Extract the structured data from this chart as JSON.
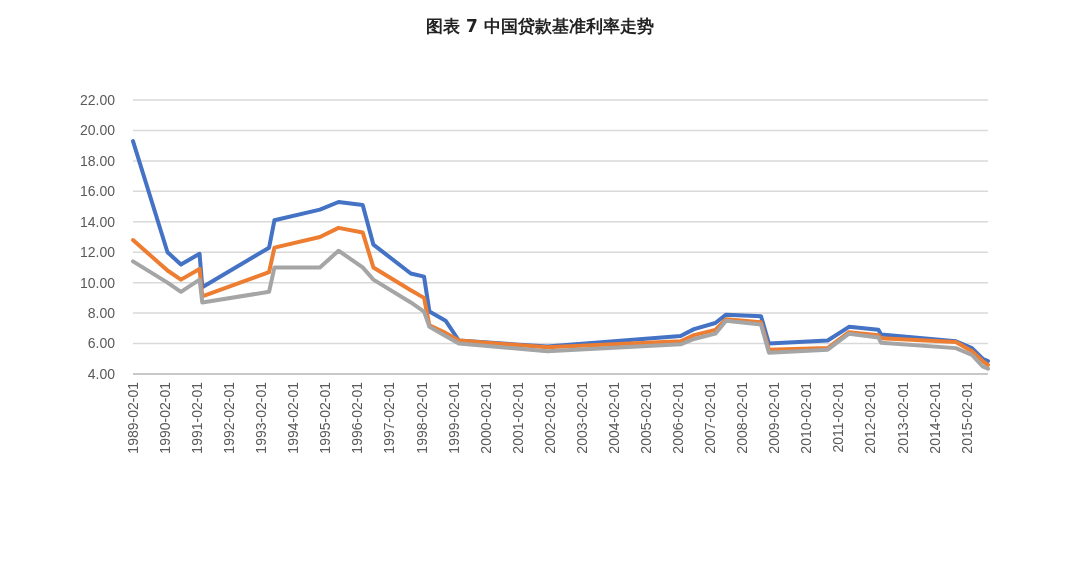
{
  "chart_data": {
    "type": "line",
    "title": "图表 7 中国贷款基准利率走势",
    "x": [
      "1989-02",
      "1990-03",
      "1990-08",
      "1991-03",
      "1991-04",
      "1993-05",
      "1993-07",
      "1994-12",
      "1995-07",
      "1996-04",
      "1996-08",
      "1997-10",
      "1998-03",
      "1998-05",
      "1998-11",
      "1999-04",
      "2002-01",
      "2006-03",
      "2006-08",
      "2007-04",
      "2007-08",
      "2008-09",
      "2008-12",
      "2010-10",
      "2011-06",
      "2012-05",
      "2012-06",
      "2014-10",
      "2015-04",
      "2015-08",
      "2015-10"
    ],
    "series": [
      {
        "color": "#4472c4",
        "values": [
          19.3,
          12.0,
          11.2,
          11.9,
          9.7,
          12.3,
          14.1,
          14.8,
          15.3,
          15.1,
          12.5,
          10.6,
          10.4,
          8.1,
          7.5,
          6.2,
          5.8,
          6.5,
          6.95,
          7.35,
          7.9,
          7.8,
          6.0,
          6.2,
          7.1,
          6.9,
          6.6,
          6.15,
          5.7,
          5.0,
          4.85
        ]
      },
      {
        "color": "#ed7d31",
        "values": [
          12.8,
          10.8,
          10.2,
          10.9,
          9.1,
          10.7,
          12.3,
          13.0,
          13.6,
          13.3,
          11.0,
          9.5,
          9.0,
          7.2,
          6.7,
          6.2,
          5.75,
          6.15,
          6.55,
          6.9,
          7.6,
          7.4,
          5.6,
          5.7,
          6.75,
          6.55,
          6.35,
          6.1,
          5.5,
          4.85,
          4.6
        ]
      },
      {
        "color": "#a5a5a5",
        "values": [
          11.4,
          10.0,
          9.4,
          10.2,
          8.7,
          9.4,
          11.0,
          11.0,
          12.1,
          11.0,
          10.2,
          8.7,
          8.1,
          7.1,
          6.5,
          6.0,
          5.5,
          5.95,
          6.3,
          6.65,
          7.5,
          7.25,
          5.4,
          5.6,
          6.65,
          6.4,
          6.05,
          5.7,
          5.25,
          4.5,
          4.35
        ]
      }
    ],
    "xlim": [
      "1989-02",
      "2015-10"
    ],
    "xticks": [
      "1989-02-01",
      "1990-02-01",
      "1991-02-01",
      "1992-02-01",
      "1993-02-01",
      "1994-02-01",
      "1995-02-01",
      "1996-02-01",
      "1997-02-01",
      "1998-02-01",
      "1999-02-01",
      "2000-02-01",
      "2001-02-01",
      "2002-02-01",
      "2003-02-01",
      "2004-02-01",
      "2005-02-01",
      "2006-02-01",
      "2007-02-01",
      "2008-02-01",
      "2009-02-01",
      "2010-02-01",
      "2011-02-01",
      "2012-02-01",
      "2013-02-01",
      "2014-02-01",
      "2015-02-01"
    ],
    "ylim": [
      4,
      22
    ],
    "yticks": [
      {
        "value": 4,
        "label": "4.00"
      },
      {
        "value": 6,
        "label": "6.00"
      },
      {
        "value": 8,
        "label": "8.00"
      },
      {
        "value": 10,
        "label": "10.00"
      },
      {
        "value": 12,
        "label": "12.00"
      },
      {
        "value": 14,
        "label": "14.00"
      },
      {
        "value": 16,
        "label": "16.00"
      },
      {
        "value": 18,
        "label": "18.00"
      },
      {
        "value": 20,
        "label": "20.00"
      },
      {
        "value": 22,
        "label": "22.00"
      }
    ],
    "grid": "y",
    "line_style": "solid",
    "marker": "none"
  }
}
